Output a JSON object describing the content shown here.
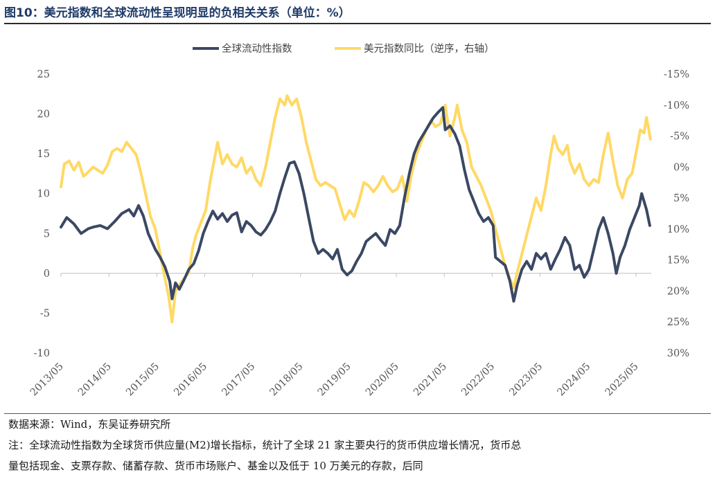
{
  "figure": {
    "title": "图10：美元指数和全球流动性呈现明显的负相关关系（单位：%）",
    "source": "数据来源：Wind，东吴证券研究所",
    "note_line1": "注：全球流动性指数为全球货币供应量(M2)增长指标，统计了全球 21 家主要央行的货币供应增长情况，货币总",
    "note_line2": "量包括现金、支票存款、储蓄存款、货币市场账户、基金以及低于 10 万美元的存款，后同"
  },
  "chart_data": {
    "type": "line",
    "legend_position": "top-center",
    "x_tick_labels": [
      "2013/05",
      "2014/05",
      "2015/05",
      "2016/05",
      "2017/05",
      "2018/05",
      "2019/05",
      "2020/05",
      "2021/05",
      "2022/05",
      "2023/05",
      "2024/05",
      "2025/05"
    ],
    "x_range": [
      "2013/05",
      "2025/09"
    ],
    "left_axis": {
      "ylim": [
        -10,
        25
      ],
      "ticks": [
        -10,
        -5,
        0,
        5,
        10,
        15,
        20,
        25
      ],
      "tick_labels": [
        "-10",
        "-5",
        "0",
        "5",
        "10",
        "15",
        "20",
        "25"
      ]
    },
    "right_axis": {
      "inverted": true,
      "ylim": [
        30,
        -15
      ],
      "ticks": [
        -15,
        -10,
        -5,
        0,
        5,
        10,
        15,
        20,
        25,
        30
      ],
      "tick_labels": [
        "-15%",
        "-10%",
        "-5%",
        "0%",
        "5%",
        "10%",
        "15%",
        "20%",
        "25%",
        "30%"
      ]
    },
    "series": [
      {
        "name": "全球流动性指数",
        "axis": "left",
        "color": "#3b4863",
        "points": [
          [
            2013.33,
            5.8
          ],
          [
            2013.45,
            7.0
          ],
          [
            2013.6,
            6.2
          ],
          [
            2013.75,
            5.0
          ],
          [
            2013.9,
            5.6
          ],
          [
            2014.0,
            5.8
          ],
          [
            2014.15,
            6.0
          ],
          [
            2014.3,
            5.6
          ],
          [
            2014.45,
            6.5
          ],
          [
            2014.6,
            7.5
          ],
          [
            2014.75,
            8.0
          ],
          [
            2014.85,
            7.2
          ],
          [
            2014.95,
            8.5
          ],
          [
            2015.05,
            7.2
          ],
          [
            2015.15,
            5.0
          ],
          [
            2015.3,
            3.0
          ],
          [
            2015.4,
            2.0
          ],
          [
            2015.5,
            0.8
          ],
          [
            2015.6,
            -1.0
          ],
          [
            2015.65,
            -3.2
          ],
          [
            2015.72,
            -1.2
          ],
          [
            2015.8,
            -2.0
          ],
          [
            2015.9,
            -0.8
          ],
          [
            2016.0,
            0.5
          ],
          [
            2016.1,
            1.2
          ],
          [
            2016.2,
            2.8
          ],
          [
            2016.3,
            5.0
          ],
          [
            2016.4,
            6.5
          ],
          [
            2016.5,
            7.8
          ],
          [
            2016.6,
            6.8
          ],
          [
            2016.7,
            7.5
          ],
          [
            2016.8,
            6.5
          ],
          [
            2016.9,
            7.3
          ],
          [
            2017.0,
            7.6
          ],
          [
            2017.1,
            5.2
          ],
          [
            2017.2,
            6.5
          ],
          [
            2017.3,
            6.0
          ],
          [
            2017.4,
            5.2
          ],
          [
            2017.5,
            4.8
          ],
          [
            2017.6,
            5.5
          ],
          [
            2017.7,
            6.5
          ],
          [
            2017.8,
            7.8
          ],
          [
            2017.9,
            10.0
          ],
          [
            2018.0,
            12.0
          ],
          [
            2018.1,
            13.8
          ],
          [
            2018.2,
            14.0
          ],
          [
            2018.3,
            12.5
          ],
          [
            2018.4,
            10.0
          ],
          [
            2018.5,
            7.0
          ],
          [
            2018.6,
            4.0
          ],
          [
            2018.7,
            2.5
          ],
          [
            2018.8,
            3.0
          ],
          [
            2018.9,
            2.5
          ],
          [
            2019.0,
            1.8
          ],
          [
            2019.1,
            3.0
          ],
          [
            2019.2,
            0.5
          ],
          [
            2019.3,
            -0.2
          ],
          [
            2019.4,
            0.3
          ],
          [
            2019.5,
            1.5
          ],
          [
            2019.6,
            2.5
          ],
          [
            2019.7,
            4.0
          ],
          [
            2019.8,
            4.5
          ],
          [
            2019.9,
            5.0
          ],
          [
            2020.0,
            4.2
          ],
          [
            2020.1,
            3.5
          ],
          [
            2020.2,
            5.5
          ],
          [
            2020.3,
            5.0
          ],
          [
            2020.4,
            6.0
          ],
          [
            2020.5,
            9.5
          ],
          [
            2020.6,
            12.5
          ],
          [
            2020.7,
            15.0
          ],
          [
            2020.8,
            16.5
          ],
          [
            2020.9,
            17.5
          ],
          [
            2021.0,
            18.5
          ],
          [
            2021.1,
            19.5
          ],
          [
            2021.2,
            20.2
          ],
          [
            2021.3,
            20.8
          ],
          [
            2021.35,
            18.0
          ],
          [
            2021.45,
            18.5
          ],
          [
            2021.55,
            17.5
          ],
          [
            2021.65,
            16.0
          ],
          [
            2021.75,
            13.0
          ],
          [
            2021.85,
            10.5
          ],
          [
            2021.95,
            9.0
          ],
          [
            2022.05,
            7.5
          ],
          [
            2022.15,
            6.5
          ],
          [
            2022.25,
            7.0
          ],
          [
            2022.35,
            6.0
          ],
          [
            2022.4,
            2.0
          ],
          [
            2022.5,
            1.5
          ],
          [
            2022.6,
            1.0
          ],
          [
            2022.7,
            -1.0
          ],
          [
            2022.78,
            -3.5
          ],
          [
            2022.85,
            -1.5
          ],
          [
            2022.95,
            0.5
          ],
          [
            2023.05,
            1.5
          ],
          [
            2023.15,
            0.5
          ],
          [
            2023.25,
            2.5
          ],
          [
            2023.35,
            1.8
          ],
          [
            2023.45,
            2.5
          ],
          [
            2023.55,
            0.5
          ],
          [
            2023.65,
            1.8
          ],
          [
            2023.75,
            3.0
          ],
          [
            2023.85,
            4.5
          ],
          [
            2023.95,
            3.5
          ],
          [
            2024.05,
            0.5
          ],
          [
            2024.15,
            1.0
          ],
          [
            2024.25,
            -0.5
          ],
          [
            2024.35,
            0.5
          ],
          [
            2024.45,
            3.0
          ],
          [
            2024.55,
            5.5
          ],
          [
            2024.65,
            7.0
          ],
          [
            2024.75,
            5.0
          ],
          [
            2024.85,
            2.5
          ],
          [
            2024.92,
            0.0
          ],
          [
            2025.0,
            2.0
          ],
          [
            2025.1,
            3.5
          ],
          [
            2025.2,
            5.5
          ],
          [
            2025.3,
            7.0
          ],
          [
            2025.4,
            8.5
          ],
          [
            2025.45,
            10.0
          ],
          [
            2025.55,
            8.0
          ],
          [
            2025.62,
            6.0
          ]
        ]
      },
      {
        "name": "美元指数同比（逆序，右轴）",
        "axis": "right",
        "color": "#ffd966",
        "points": [
          [
            2013.33,
            3.2
          ],
          [
            2013.4,
            -0.5
          ],
          [
            2013.5,
            -1.0
          ],
          [
            2013.6,
            0.5
          ],
          [
            2013.7,
            -0.8
          ],
          [
            2013.8,
            1.5
          ],
          [
            2013.9,
            0.8
          ],
          [
            2014.0,
            0.0
          ],
          [
            2014.1,
            0.5
          ],
          [
            2014.2,
            1.0
          ],
          [
            2014.3,
            -0.3
          ],
          [
            2014.4,
            -2.5
          ],
          [
            2014.5,
            -3.0
          ],
          [
            2014.6,
            -2.5
          ],
          [
            2014.7,
            -4.0
          ],
          [
            2014.8,
            -3.0
          ],
          [
            2014.9,
            -2.0
          ],
          [
            2015.0,
            1.0
          ],
          [
            2015.1,
            4.5
          ],
          [
            2015.2,
            8.0
          ],
          [
            2015.3,
            10.0
          ],
          [
            2015.4,
            14.0
          ],
          [
            2015.5,
            18.0
          ],
          [
            2015.58,
            21.0
          ],
          [
            2015.65,
            25.0
          ],
          [
            2015.72,
            20.0
          ],
          [
            2015.8,
            19.0
          ],
          [
            2015.9,
            18.0
          ],
          [
            2016.0,
            17.0
          ],
          [
            2016.08,
            13.0
          ],
          [
            2016.15,
            11.0
          ],
          [
            2016.25,
            9.0
          ],
          [
            2016.35,
            7.0
          ],
          [
            2016.45,
            2.0
          ],
          [
            2016.55,
            -2.0
          ],
          [
            2016.6,
            -4.0
          ],
          [
            2016.7,
            -0.5
          ],
          [
            2016.8,
            -2.0
          ],
          [
            2016.9,
            -0.5
          ],
          [
            2017.0,
            0.0
          ],
          [
            2017.1,
            -1.5
          ],
          [
            2017.2,
            1.0
          ],
          [
            2017.3,
            0.0
          ],
          [
            2017.4,
            2.0
          ],
          [
            2017.5,
            3.0
          ],
          [
            2017.6,
            0.0
          ],
          [
            2017.7,
            -4.0
          ],
          [
            2017.8,
            -8.0
          ],
          [
            2017.9,
            -11.0
          ],
          [
            2018.0,
            -10.0
          ],
          [
            2018.05,
            -11.5
          ],
          [
            2018.15,
            -10.0
          ],
          [
            2018.25,
            -11.0
          ],
          [
            2018.35,
            -8.0
          ],
          [
            2018.45,
            -4.0
          ],
          [
            2018.55,
            -1.0
          ],
          [
            2018.65,
            2.0
          ],
          [
            2018.75,
            3.0
          ],
          [
            2018.85,
            2.5
          ],
          [
            2018.95,
            3.0
          ],
          [
            2019.05,
            3.5
          ],
          [
            2019.15,
            6.0
          ],
          [
            2019.25,
            8.5
          ],
          [
            2019.35,
            7.0
          ],
          [
            2019.45,
            8.0
          ],
          [
            2019.55,
            5.5
          ],
          [
            2019.65,
            2.5
          ],
          [
            2019.75,
            3.0
          ],
          [
            2019.85,
            4.0
          ],
          [
            2019.95,
            3.0
          ],
          [
            2020.05,
            1.5
          ],
          [
            2020.15,
            3.0
          ],
          [
            2020.25,
            4.0
          ],
          [
            2020.35,
            3.5
          ],
          [
            2020.45,
            1.5
          ],
          [
            2020.55,
            5.5
          ],
          [
            2020.65,
            1.0
          ],
          [
            2020.75,
            -2.0
          ],
          [
            2020.85,
            -4.0
          ],
          [
            2020.95,
            -6.0
          ],
          [
            2021.05,
            -7.5
          ],
          [
            2021.15,
            -6.5
          ],
          [
            2021.25,
            -7.0
          ],
          [
            2021.35,
            -10.0
          ],
          [
            2021.45,
            -5.0
          ],
          [
            2021.55,
            -8.0
          ],
          [
            2021.6,
            -10.0
          ],
          [
            2021.7,
            -6.0
          ],
          [
            2021.8,
            -4.0
          ],
          [
            2021.9,
            0.0
          ],
          [
            2022.0,
            1.5
          ],
          [
            2022.1,
            3.0
          ],
          [
            2022.2,
            5.0
          ],
          [
            2022.3,
            7.0
          ],
          [
            2022.4,
            10.0
          ],
          [
            2022.5,
            13.0
          ],
          [
            2022.6,
            16.0
          ],
          [
            2022.7,
            18.0
          ],
          [
            2022.78,
            19.5
          ],
          [
            2022.85,
            17.0
          ],
          [
            2022.95,
            14.0
          ],
          [
            2023.05,
            11.0
          ],
          [
            2023.15,
            8.0
          ],
          [
            2023.25,
            5.0
          ],
          [
            2023.35,
            7.0
          ],
          [
            2023.45,
            3.0
          ],
          [
            2023.55,
            -2.0
          ],
          [
            2023.62,
            -5.0
          ],
          [
            2023.7,
            -3.0
          ],
          [
            2023.8,
            -2.0
          ],
          [
            2023.9,
            -3.5
          ],
          [
            2023.95,
            -1.0
          ],
          [
            2024.05,
            1.0
          ],
          [
            2024.15,
            -0.5
          ],
          [
            2024.25,
            2.0
          ],
          [
            2024.35,
            3.0
          ],
          [
            2024.45,
            2.0
          ],
          [
            2024.55,
            2.5
          ],
          [
            2024.65,
            -2.0
          ],
          [
            2024.75,
            -5.5
          ],
          [
            2024.85,
            -1.0
          ],
          [
            2024.95,
            3.0
          ],
          [
            2025.05,
            5.0
          ],
          [
            2025.15,
            2.0
          ],
          [
            2025.25,
            1.0
          ],
          [
            2025.35,
            -3.0
          ],
          [
            2025.42,
            -6.0
          ],
          [
            2025.5,
            -5.5
          ],
          [
            2025.55,
            -8.0
          ],
          [
            2025.6,
            -6.0
          ],
          [
            2025.63,
            -4.5
          ]
        ]
      }
    ]
  }
}
